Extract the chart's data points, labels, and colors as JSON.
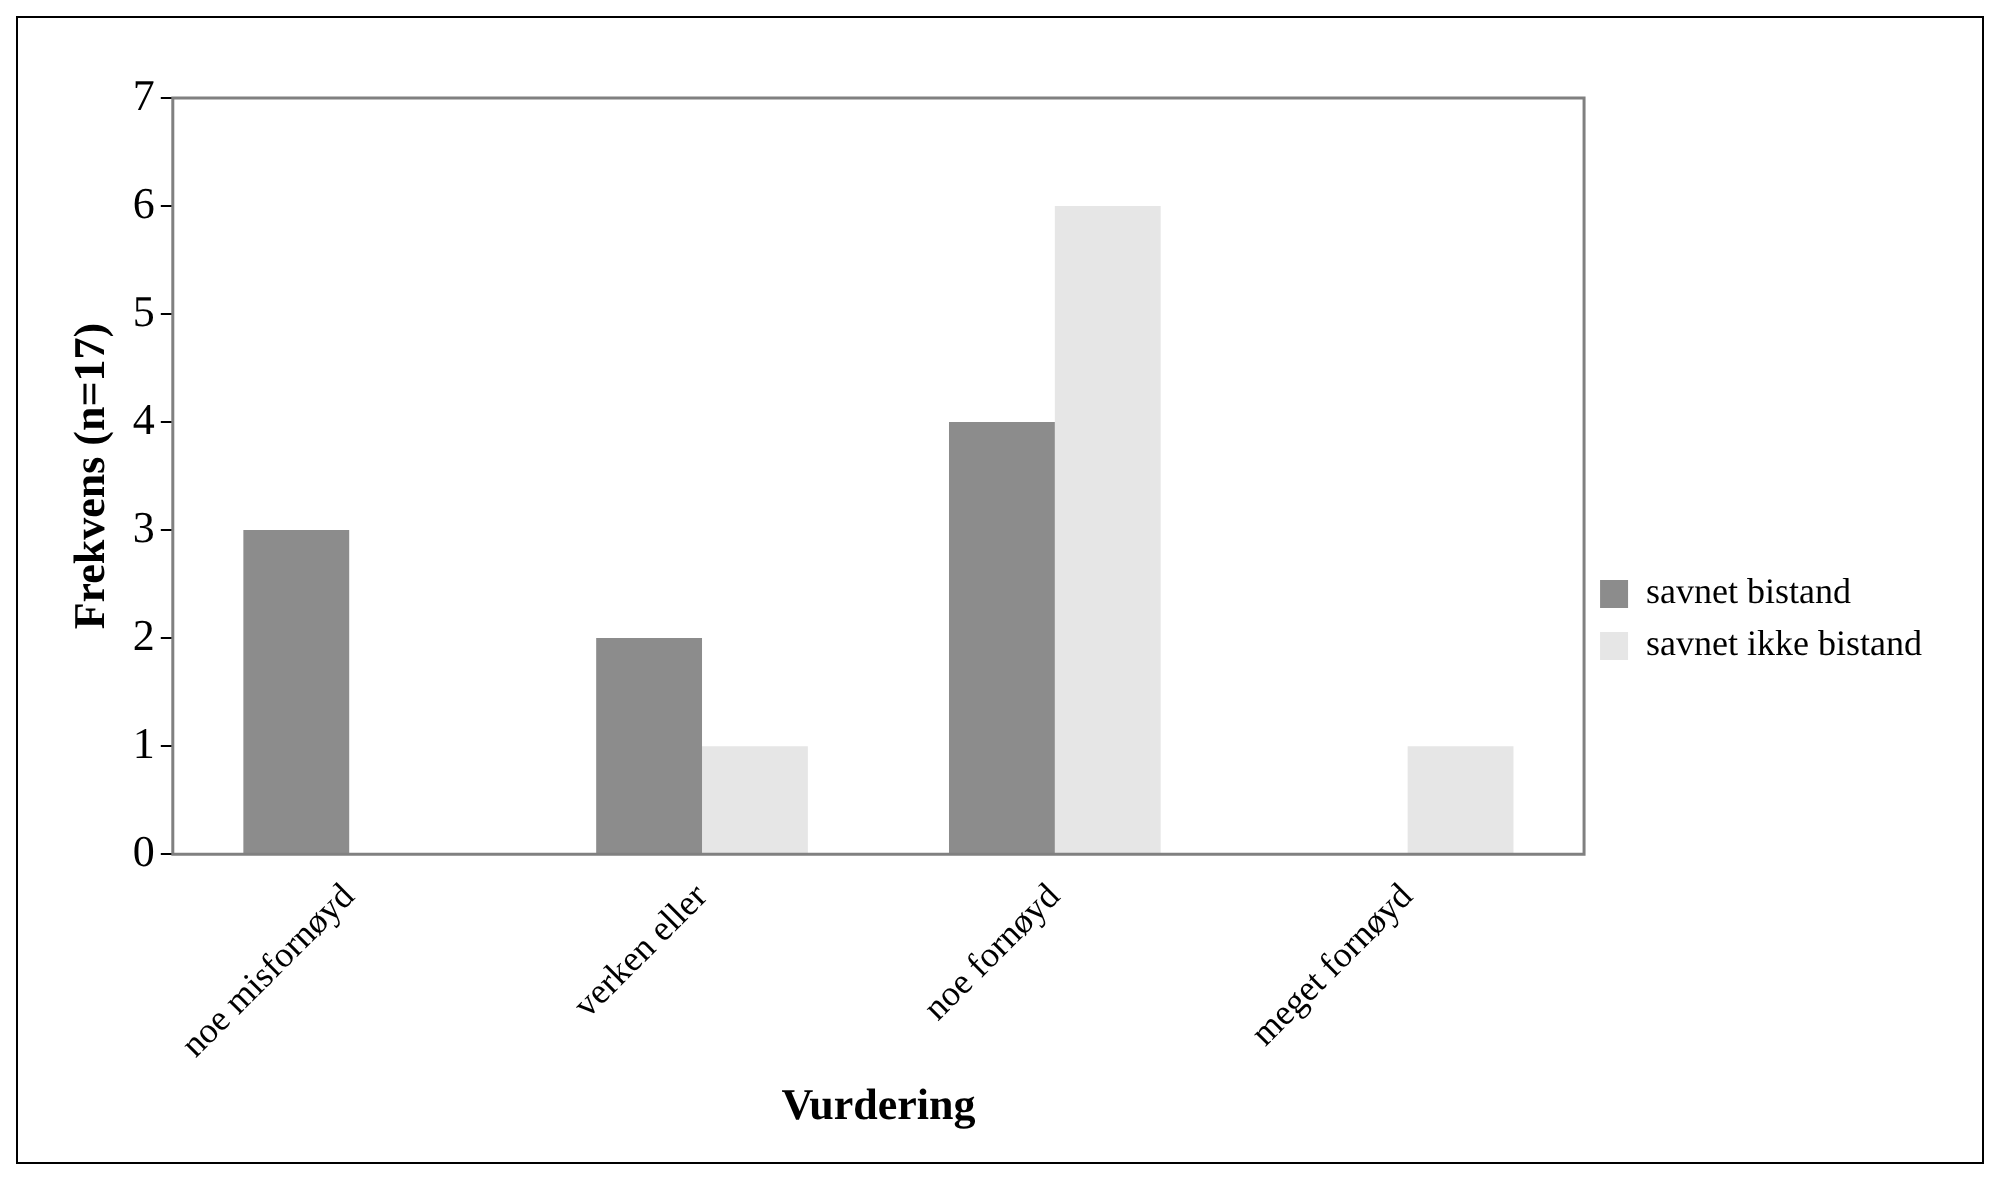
{
  "chart_data": {
    "type": "bar",
    "xlabel": "Vurdering",
    "ylabel": "Frekvens (n=17)",
    "categories": [
      "noe misfornøyd",
      "verken eller",
      "noe fornøyd",
      "meget fornøyd"
    ],
    "series": [
      {
        "name": "savnet bistand",
        "color": "#8c8c8c",
        "values": [
          3,
          2,
          4,
          0
        ]
      },
      {
        "name": "savnet ikke bistand",
        "color": "#e6e6e6",
        "values": [
          0,
          1,
          6,
          1
        ]
      }
    ],
    "ylim": [
      0,
      7
    ],
    "yticks": [
      0,
      1,
      2,
      3,
      4,
      5,
      6,
      7
    ],
    "grid": false,
    "legend": "right"
  }
}
